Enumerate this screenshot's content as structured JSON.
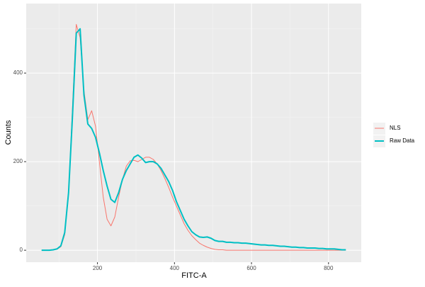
{
  "chart_data": {
    "type": "line",
    "x_label": "FITC-A",
    "y_label": "Counts",
    "x": [
      55,
      65,
      75,
      85,
      95,
      105,
      115,
      125,
      135,
      145,
      155,
      165,
      175,
      185,
      195,
      205,
      215,
      225,
      235,
      245,
      255,
      265,
      275,
      285,
      295,
      305,
      315,
      325,
      335,
      345,
      355,
      365,
      375,
      385,
      395,
      405,
      415,
      425,
      435,
      445,
      455,
      465,
      475,
      485,
      495,
      505,
      515,
      525,
      535,
      545,
      555,
      565,
      575,
      585,
      595,
      605,
      615,
      625,
      635,
      645,
      655,
      665,
      675,
      685,
      695,
      705,
      715,
      725,
      735,
      745,
      755,
      765,
      775,
      785,
      795,
      805,
      815,
      825,
      835,
      845
    ],
    "series": [
      {
        "name": "NLS",
        "color": "#f8766d",
        "width": 1,
        "values": [
          0,
          0,
          0,
          1,
          2,
          8,
          35,
          130,
          320,
          510,
          480,
          360,
          295,
          315,
          280,
          200,
          120,
          70,
          55,
          75,
          120,
          160,
          190,
          202,
          203,
          200,
          205,
          210,
          210,
          205,
          195,
          180,
          162,
          142,
          120,
          100,
          80,
          60,
          45,
          33,
          24,
          16,
          11,
          7,
          4,
          2,
          1,
          1,
          0,
          0,
          0,
          0,
          0,
          0,
          0,
          0,
          0,
          0,
          0,
          0,
          0,
          0,
          0,
          0,
          0,
          0,
          0,
          0,
          0,
          0,
          0,
          0,
          0,
          0,
          0,
          0,
          0,
          0,
          0,
          0
        ]
      },
      {
        "name": "Raw Data",
        "color": "#00bfc4",
        "width": 2,
        "values": [
          0,
          0,
          0,
          1,
          3,
          10,
          40,
          130,
          300,
          490,
          500,
          350,
          285,
          275,
          255,
          220,
          180,
          145,
          115,
          108,
          130,
          160,
          180,
          195,
          210,
          215,
          208,
          198,
          200,
          200,
          195,
          185,
          170,
          155,
          135,
          110,
          90,
          70,
          55,
          42,
          35,
          30,
          29,
          30,
          27,
          22,
          20,
          20,
          18,
          18,
          17,
          17,
          16,
          16,
          15,
          14,
          13,
          12,
          12,
          11,
          11,
          10,
          9,
          9,
          8,
          7,
          7,
          6,
          6,
          5,
          5,
          5,
          4,
          4,
          3,
          3,
          3,
          2,
          1,
          1
        ]
      }
    ],
    "xlim": [
      15,
      885
    ],
    "ylim": [
      -27,
      557
    ],
    "xticks": [
      200,
      400,
      600,
      800
    ],
    "yticks": [
      0,
      200,
      400
    ],
    "xminorticks": [
      100,
      300,
      500,
      700
    ],
    "yminorticks": [
      100,
      300,
      500
    ],
    "grid": true,
    "legend": "right"
  }
}
